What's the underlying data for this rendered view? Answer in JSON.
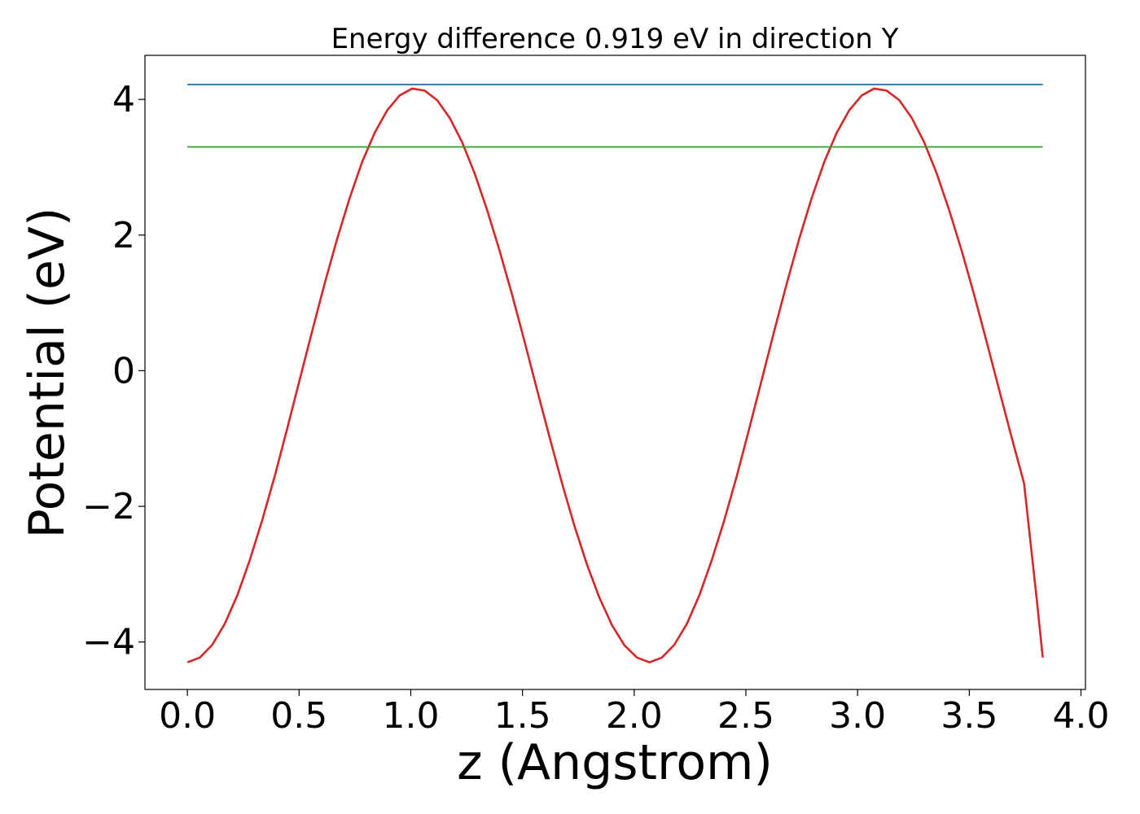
{
  "chart_data": {
    "type": "line",
    "title": "Energy difference 0.919 eV in direction Y",
    "xlabel": "z (Angstrom)",
    "ylabel": "Potential (eV)",
    "xlim": [
      -0.19,
      4.02
    ],
    "ylim": [
      -4.7,
      4.65
    ],
    "xticks": [
      0.0,
      0.5,
      1.0,
      1.5,
      2.0,
      2.5,
      3.0,
      3.5,
      4.0
    ],
    "xtick_labels": [
      "0.0",
      "0.5",
      "1.0",
      "1.5",
      "2.0",
      "2.5",
      "3.0",
      "3.5",
      "4.0"
    ],
    "yticks": [
      -4,
      -2,
      0,
      2,
      4
    ],
    "ytick_labels": [
      "−4",
      "−2",
      "0",
      "2",
      "4"
    ],
    "grid": false,
    "series": [
      {
        "color": "#d62728",
        "x": [
          0.0,
          0.0559,
          0.1118,
          0.1677,
          0.2236,
          0.2795,
          0.3354,
          0.3913,
          0.4472,
          0.5031,
          0.559,
          0.6149,
          0.6708,
          0.7267,
          0.7826,
          0.8385,
          0.8944,
          0.9503,
          1.0062,
          1.0621,
          1.118,
          1.1739,
          1.2298,
          1.2857,
          1.3416,
          1.3975,
          1.4534,
          1.5093,
          1.5652,
          1.6211,
          1.677,
          1.7329,
          1.7888,
          1.8447,
          1.9006,
          1.9565,
          2.0124,
          2.0683,
          2.1242,
          2.1801,
          2.236,
          2.2919,
          2.3478,
          2.4037,
          2.4596,
          2.5155,
          2.5714,
          2.6273,
          2.6832,
          2.7391,
          2.795,
          2.8509,
          2.9068,
          2.9627,
          3.0186,
          3.0745,
          3.1304,
          3.1863,
          3.2422,
          3.2981,
          3.354,
          3.4099,
          3.4658,
          3.5217,
          3.5776,
          3.6335,
          3.6894,
          3.7453,
          3.8012,
          3.8291
        ],
        "y": [
          -4.3,
          -4.23,
          -4.04,
          -3.73,
          -3.31,
          -2.79,
          -2.2,
          -1.55,
          -0.85,
          -0.13,
          0.59,
          1.29,
          1.95,
          2.55,
          3.08,
          3.51,
          3.84,
          4.06,
          4.16,
          4.13,
          3.99,
          3.73,
          3.37,
          2.91,
          2.37,
          1.77,
          1.12,
          0.43,
          -0.28,
          -0.98,
          -1.66,
          -2.29,
          -2.86,
          -3.35,
          -3.75,
          -4.05,
          -4.23,
          -4.3,
          -4.23,
          -4.04,
          -3.73,
          -3.31,
          -2.79,
          -2.2,
          -1.55,
          -0.85,
          -0.13,
          0.59,
          1.29,
          1.95,
          2.55,
          3.08,
          3.51,
          3.84,
          4.06,
          4.16,
          4.13,
          3.99,
          3.73,
          3.37,
          2.91,
          2.37,
          1.77,
          1.12,
          0.43,
          -0.28,
          -0.98,
          -1.66,
          -3.35,
          -4.23
        ]
      },
      {
        "color": "#1f77b4",
        "x": [
          0.0,
          3.8291
        ],
        "y": [
          4.22,
          4.22
        ]
      },
      {
        "color": "#2ca02c",
        "x": [
          0.0,
          3.8291
        ],
        "y": [
          3.3,
          3.3
        ]
      }
    ]
  }
}
